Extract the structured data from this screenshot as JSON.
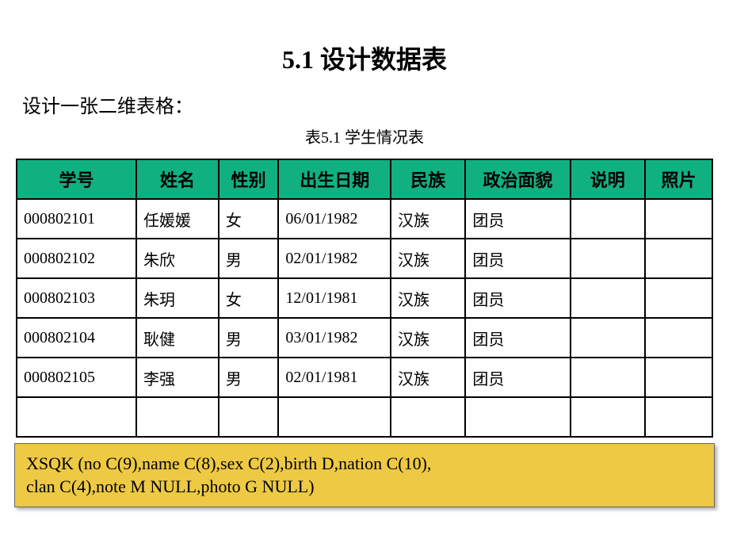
{
  "title": "5.1  设计数据表",
  "subtitle": "设计一张二维表格：",
  "tableCaption": "表5.1 学生情况表",
  "tableHeaderBg": "#10b080",
  "columns": [
    {
      "label": "学号",
      "width": "16%"
    },
    {
      "label": "姓名",
      "width": "11%"
    },
    {
      "label": "性别",
      "width": "8%"
    },
    {
      "label": "出生日期",
      "width": "15%"
    },
    {
      "label": "民族",
      "width": "10%"
    },
    {
      "label": "政治面貌",
      "width": "14%"
    },
    {
      "label": "说明",
      "width": "10%"
    },
    {
      "label": "照片",
      "width": "9%"
    }
  ],
  "rows": [
    [
      "000802101",
      "任媛媛",
      "女",
      "06/01/1982",
      "汉族",
      "团员",
      "",
      ""
    ],
    [
      "000802102",
      "朱欣",
      "男",
      "02/01/1982",
      "汉族",
      "团员",
      "",
      ""
    ],
    [
      "000802103",
      "朱玥",
      "女",
      "12/01/1981",
      "汉族",
      "团员",
      "",
      ""
    ],
    [
      "000802104",
      "耿健",
      "男",
      "03/01/1982",
      "汉族",
      "团员",
      "",
      ""
    ],
    [
      "000802105",
      "李强",
      "男",
      "02/01/1981",
      "汉族",
      "团员",
      "",
      ""
    ],
    [
      "",
      "",
      "",
      "",
      "",
      "",
      "",
      ""
    ]
  ],
  "noteBox": {
    "line1": "XSQK (no C(9),name C(8),sex C(2),birth D,nation C(10),",
    "line2": "clan C(4),note M NULL,photo G NULL)",
    "bgColor": "#edc944"
  }
}
